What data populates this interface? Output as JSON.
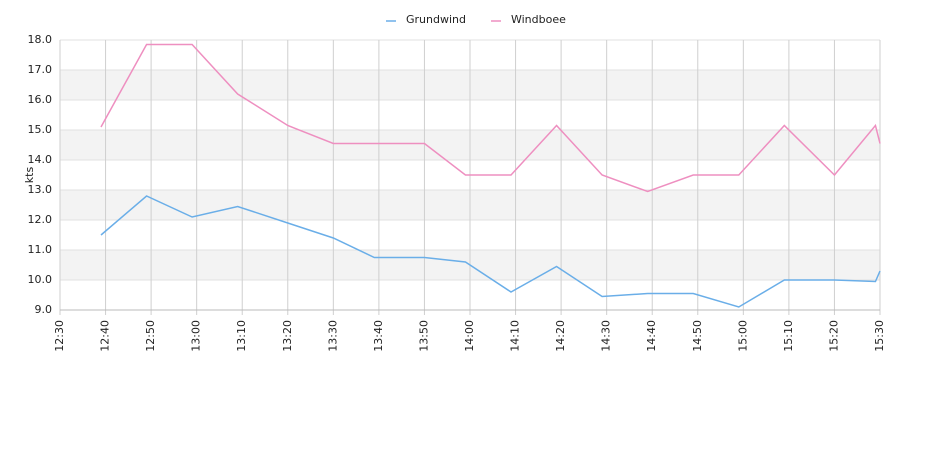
{
  "chart_data": {
    "type": "line",
    "y_label": "kts",
    "xlim": [
      "12:30",
      "15:30"
    ],
    "xticks": [
      "12:30",
      "12:40",
      "12:50",
      "13:00",
      "13:10",
      "13:20",
      "13:30",
      "13:40",
      "13:50",
      "14:00",
      "14:10",
      "14:20",
      "14:30",
      "14:40",
      "14:50",
      "15:00",
      "15:10",
      "15:20",
      "15:30"
    ],
    "ylim": [
      9,
      18
    ],
    "yticks": [
      {
        "value": 9,
        "label": "9.0"
      },
      {
        "value": 10,
        "label": "10.0"
      },
      {
        "value": 11,
        "label": "11.0"
      },
      {
        "value": 12,
        "label": "12.0"
      },
      {
        "value": 13,
        "label": "13.0"
      },
      {
        "value": 14,
        "label": "14.0"
      },
      {
        "value": 15,
        "label": "15.0"
      },
      {
        "value": 16,
        "label": "16.0"
      },
      {
        "value": 17,
        "label": "17.0"
      },
      {
        "value": 18,
        "label": "18.0"
      }
    ],
    "grid": true,
    "band_color": "#f3f3f3",
    "legend": "top",
    "x": [
      "12:39",
      "12:49",
      "12:59",
      "13:09",
      "13:20",
      "13:30",
      "13:39",
      "13:50",
      "13:59",
      "14:09",
      "14:19",
      "14:29",
      "14:39",
      "14:49",
      "14:59",
      "15:09",
      "15:20",
      "15:29",
      "15:30"
    ],
    "series": [
      {
        "name": "Grundwind",
        "color": "#6aaee8",
        "values": [
          11.5,
          12.8,
          12.1,
          12.45,
          11.9,
          11.4,
          10.75,
          10.75,
          10.6,
          9.6,
          10.45,
          9.45,
          9.55,
          9.55,
          9.1,
          10.0,
          10.0,
          9.95,
          10.3
        ]
      },
      {
        "name": "Windboee",
        "color": "#ee8fc0",
        "values": [
          15.1,
          17.85,
          17.85,
          16.2,
          15.15,
          14.55,
          14.55,
          14.55,
          13.5,
          13.5,
          15.15,
          13.5,
          12.95,
          13.5,
          13.5,
          15.15,
          13.5,
          15.15,
          14.55
        ]
      }
    ]
  }
}
